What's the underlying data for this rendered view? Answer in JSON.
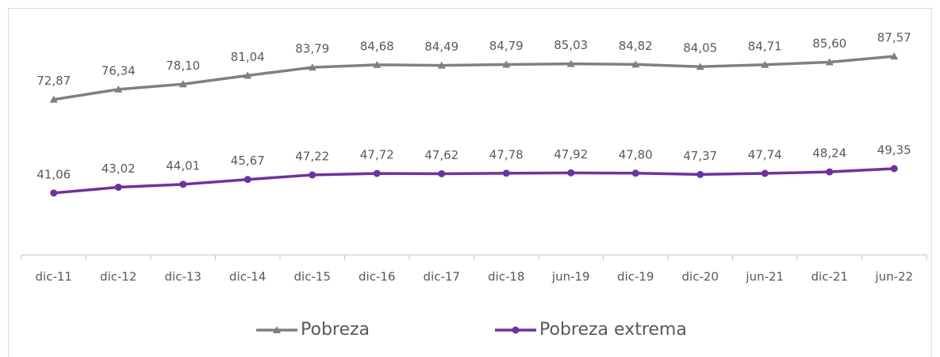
{
  "chart_data": {
    "type": "line",
    "categories": [
      "dic-11",
      "dic-12",
      "dic-13",
      "dic-14",
      "dic-15",
      "dic-16",
      "dic-17",
      "dic-18",
      "jun-19",
      "dic-19",
      "dic-20",
      "jun-21",
      "dic-21",
      "jun-22"
    ],
    "series": [
      {
        "name": "Pobreza",
        "color": "#808080",
        "marker": "triangle",
        "values": [
          72.87,
          76.34,
          78.1,
          81.04,
          83.79,
          84.68,
          84.49,
          84.79,
          85.03,
          84.82,
          84.05,
          84.71,
          85.6,
          87.57
        ],
        "value_labels": [
          "72,87",
          "76,34",
          "78,10",
          "81,04",
          "83,79",
          "84,68",
          "84,49",
          "84,79",
          "85,03",
          "84,82",
          "84,05",
          "84,71",
          "85,60",
          "87,57"
        ]
      },
      {
        "name": "Pobreza extrema",
        "color": "#7030a0",
        "marker": "circle",
        "values": [
          41.06,
          43.02,
          44.01,
          45.67,
          47.22,
          47.72,
          47.62,
          47.78,
          47.92,
          47.8,
          47.37,
          47.74,
          48.24,
          49.35
        ],
        "value_labels": [
          "41,06",
          "43,02",
          "44,01",
          "45,67",
          "47,22",
          "47,72",
          "47,62",
          "47,78",
          "47,92",
          "47,80",
          "47,37",
          "47,74",
          "48,24",
          "49,35"
        ]
      }
    ],
    "ylim": [
      20,
      100
    ],
    "legend": "bottom"
  }
}
